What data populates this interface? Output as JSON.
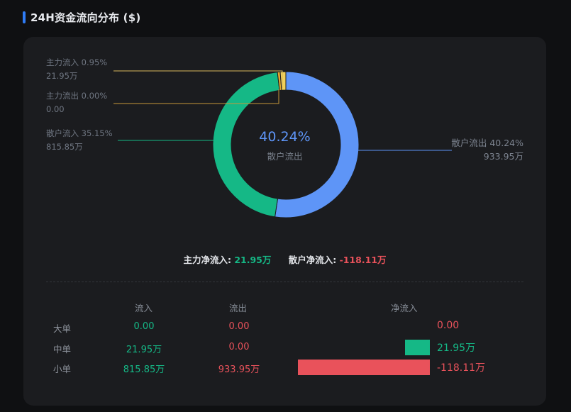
{
  "header": {
    "title": "24H资金流向分布 ($)"
  },
  "donut": {
    "center_value": "40.24%",
    "center_label": "散户流出",
    "segments": [
      {
        "name": "散户流出",
        "percent": 40.24,
        "color": "#5e95f7"
      },
      {
        "name": "散户流入",
        "percent": 35.15,
        "color": "#15b886"
      },
      {
        "name": "主力流出",
        "percent": 0.0,
        "color": "#e5a82e"
      },
      {
        "name": "主力流入",
        "percent": 0.95,
        "color": "#f0d05a"
      }
    ],
    "labels": {
      "main_in_title": "主力流入 0.95%",
      "main_in_value": "21.95万",
      "main_out_title": "主力流出 0.00%",
      "main_out_value": "0.00",
      "retail_in_title": "散户流入 35.15%",
      "retail_in_value": "815.85万",
      "retail_out_title": "散户流出 40.24%",
      "retail_out_value": "933.95万"
    }
  },
  "summary": {
    "main_label": "主力净流入:",
    "main_value": "21.95万",
    "retail_label": "散户净流入:",
    "retail_value": "-118.11万"
  },
  "table": {
    "headers": {
      "inflow": "流入",
      "outflow": "流出",
      "net": "净流入"
    },
    "rows": [
      {
        "label": "大单",
        "inflow": "0.00",
        "outflow": "0.00",
        "net": "0.00",
        "net_amount": 0
      },
      {
        "label": "中单",
        "inflow": "21.95万",
        "outflow": "0.00",
        "net": "21.95万",
        "net_amount": 21.95
      },
      {
        "label": "小单",
        "inflow": "815.85万",
        "outflow": "933.95万",
        "net": "-118.11万",
        "net_amount": -118.11
      }
    ]
  },
  "colors": {
    "positive": "#15b886",
    "negative": "#e9525b"
  }
}
